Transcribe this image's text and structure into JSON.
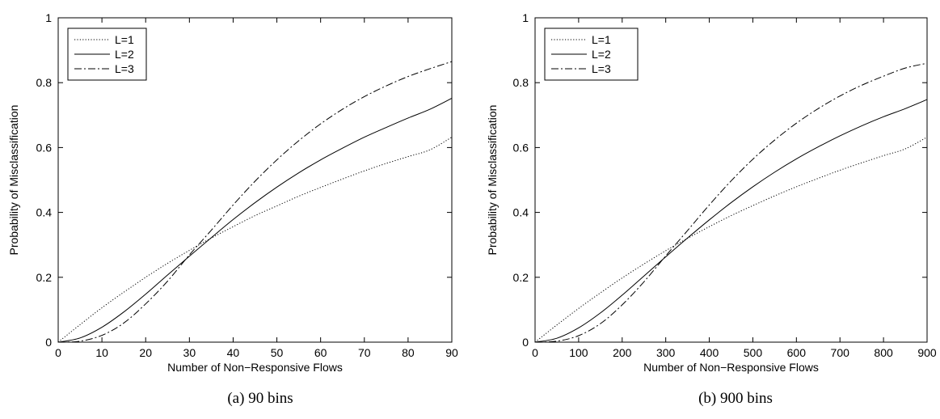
{
  "chart_data": [
    {
      "type": "line",
      "caption": "(a) 90 bins",
      "xlabel": "Number of Non−Responsive Flows",
      "ylabel": "Probability of Misclassification",
      "xlim": [
        0,
        90
      ],
      "ylim": [
        0,
        1
      ],
      "xticks": [
        "0",
        "10",
        "20",
        "30",
        "40",
        "50",
        "60",
        "70",
        "80",
        "90"
      ],
      "yticks": [
        "0",
        "0.2",
        "0.4",
        "0.6",
        "0.8",
        "1"
      ],
      "grid": false,
      "legend_position": "top-left",
      "x": [
        0,
        5,
        10,
        15,
        20,
        25,
        30,
        35,
        40,
        45,
        50,
        55,
        60,
        65,
        70,
        75,
        80,
        85,
        90
      ],
      "series": [
        {
          "name": "L=1",
          "style": "dotted",
          "values": [
            0,
            0.054,
            0.106,
            0.154,
            0.2,
            0.243,
            0.283,
            0.321,
            0.356,
            0.39,
            0.42,
            0.45,
            0.477,
            0.503,
            0.528,
            0.551,
            0.572,
            0.593,
            0.632
          ]
        },
        {
          "name": "L=2",
          "style": "solid",
          "values": [
            0,
            0.013,
            0.046,
            0.093,
            0.148,
            0.207,
            0.265,
            0.322,
            0.378,
            0.43,
            0.478,
            0.522,
            0.562,
            0.598,
            0.632,
            0.662,
            0.691,
            0.718,
            0.752
          ]
        },
        {
          "name": "L=3",
          "style": "dashdot",
          "values": [
            0,
            0.003,
            0.021,
            0.059,
            0.118,
            0.188,
            0.269,
            0.345,
            0.423,
            0.496,
            0.562,
            0.621,
            0.673,
            0.718,
            0.757,
            0.79,
            0.819,
            0.843,
            0.865
          ]
        }
      ]
    },
    {
      "type": "line",
      "caption": "(b) 900 bins",
      "xlabel": "Number of Non−Responsive Flows",
      "ylabel": "Probability of Misclassification",
      "xlim": [
        0,
        900
      ],
      "ylim": [
        0,
        1
      ],
      "xticks": [
        "0",
        "100",
        "200",
        "300",
        "400",
        "500",
        "600",
        "700",
        "800",
        "900"
      ],
      "yticks": [
        "0",
        "0.2",
        "0.4",
        "0.6",
        "0.8",
        "1"
      ],
      "grid": false,
      "legend_position": "top-left",
      "x": [
        0,
        50,
        100,
        150,
        200,
        250,
        300,
        350,
        400,
        450,
        500,
        550,
        600,
        650,
        700,
        750,
        800,
        850,
        900
      ],
      "series": [
        {
          "name": "L=1",
          "style": "dotted",
          "values": [
            0,
            0.053,
            0.104,
            0.152,
            0.198,
            0.241,
            0.282,
            0.32,
            0.356,
            0.39,
            0.421,
            0.451,
            0.479,
            0.505,
            0.53,
            0.553,
            0.575,
            0.596,
            0.632
          ]
        },
        {
          "name": "L=2",
          "style": "solid",
          "values": [
            0,
            0.012,
            0.044,
            0.09,
            0.145,
            0.204,
            0.263,
            0.321,
            0.377,
            0.43,
            0.479,
            0.524,
            0.565,
            0.602,
            0.636,
            0.667,
            0.695,
            0.72,
            0.748
          ]
        },
        {
          "name": "L=3",
          "style": "dashdot",
          "values": [
            0,
            0.003,
            0.02,
            0.057,
            0.115,
            0.186,
            0.266,
            0.344,
            0.423,
            0.497,
            0.564,
            0.623,
            0.675,
            0.72,
            0.759,
            0.792,
            0.82,
            0.845,
            0.86
          ]
        }
      ]
    }
  ]
}
